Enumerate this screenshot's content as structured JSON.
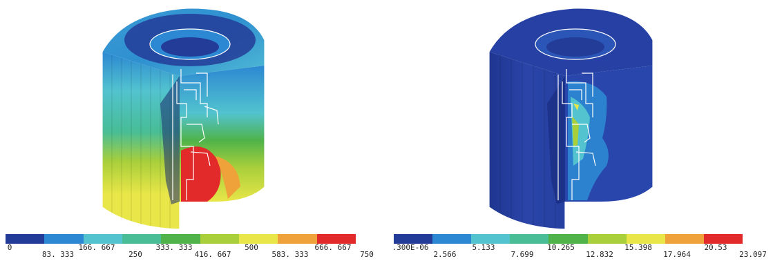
{
  "colors": {
    "c1": "#233c98",
    "c2": "#2c88d2",
    "c3": "#52c3cf",
    "c4": "#48bd96",
    "c5": "#4fb34a",
    "c6": "#a9cf3b",
    "c7": "#e8e648",
    "c8": "#f0a23a",
    "c9": "#e22a2a",
    "outline": "#ffffff"
  },
  "left_legend": {
    "swatches": [
      "#233c98",
      "#2c88d2",
      "#52c3cf",
      "#48bd96",
      "#4fb34a",
      "#a9cf3b",
      "#e8e648",
      "#f0a23a",
      "#e22a2a"
    ],
    "ticks": [
      "0",
      "83. 333",
      "166. 667",
      "250",
      "333. 333",
      "416. 667",
      "500",
      "583. 333",
      "666. 667",
      "750"
    ]
  },
  "right_legend": {
    "swatches": [
      "#233c98",
      "#2c88d2",
      "#52c3cf",
      "#48bd96",
      "#4fb34a",
      "#a9cf3b",
      "#e8e648",
      "#f0a23a",
      "#e22a2a"
    ],
    "ticks": [
      ".300E-06",
      "2.566",
      "5.133",
      "7.699",
      "10.265",
      "12.832",
      "15.398",
      "17.964",
      "20.53",
      "23.097"
    ]
  }
}
